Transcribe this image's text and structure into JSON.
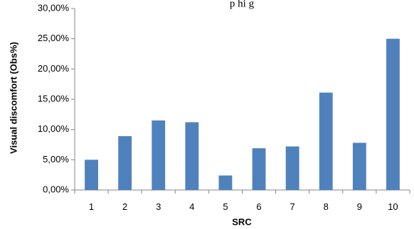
{
  "chart_data": {
    "type": "bar",
    "title": "p       hi       g",
    "xlabel": "SRC",
    "ylabel": "Visual discomfort (Obs%)",
    "categories": [
      "1",
      "2",
      "3",
      "4",
      "5",
      "6",
      "7",
      "8",
      "9",
      "10"
    ],
    "values": [
      5.0,
      8.9,
      11.5,
      11.2,
      2.4,
      6.9,
      7.2,
      16.1,
      7.8,
      25.0
    ],
    "ylim": [
      0,
      30
    ],
    "yticks": [
      0,
      5,
      10,
      15,
      20,
      25,
      30
    ],
    "ytick_labels": [
      "0,00%",
      "5,00%",
      "10,00%",
      "15,00%",
      "20,00%",
      "25,00%",
      "30,00%"
    ],
    "grid": false,
    "legend": "none",
    "bar_color": "#4F81BD",
    "axis_color": "#868686"
  }
}
